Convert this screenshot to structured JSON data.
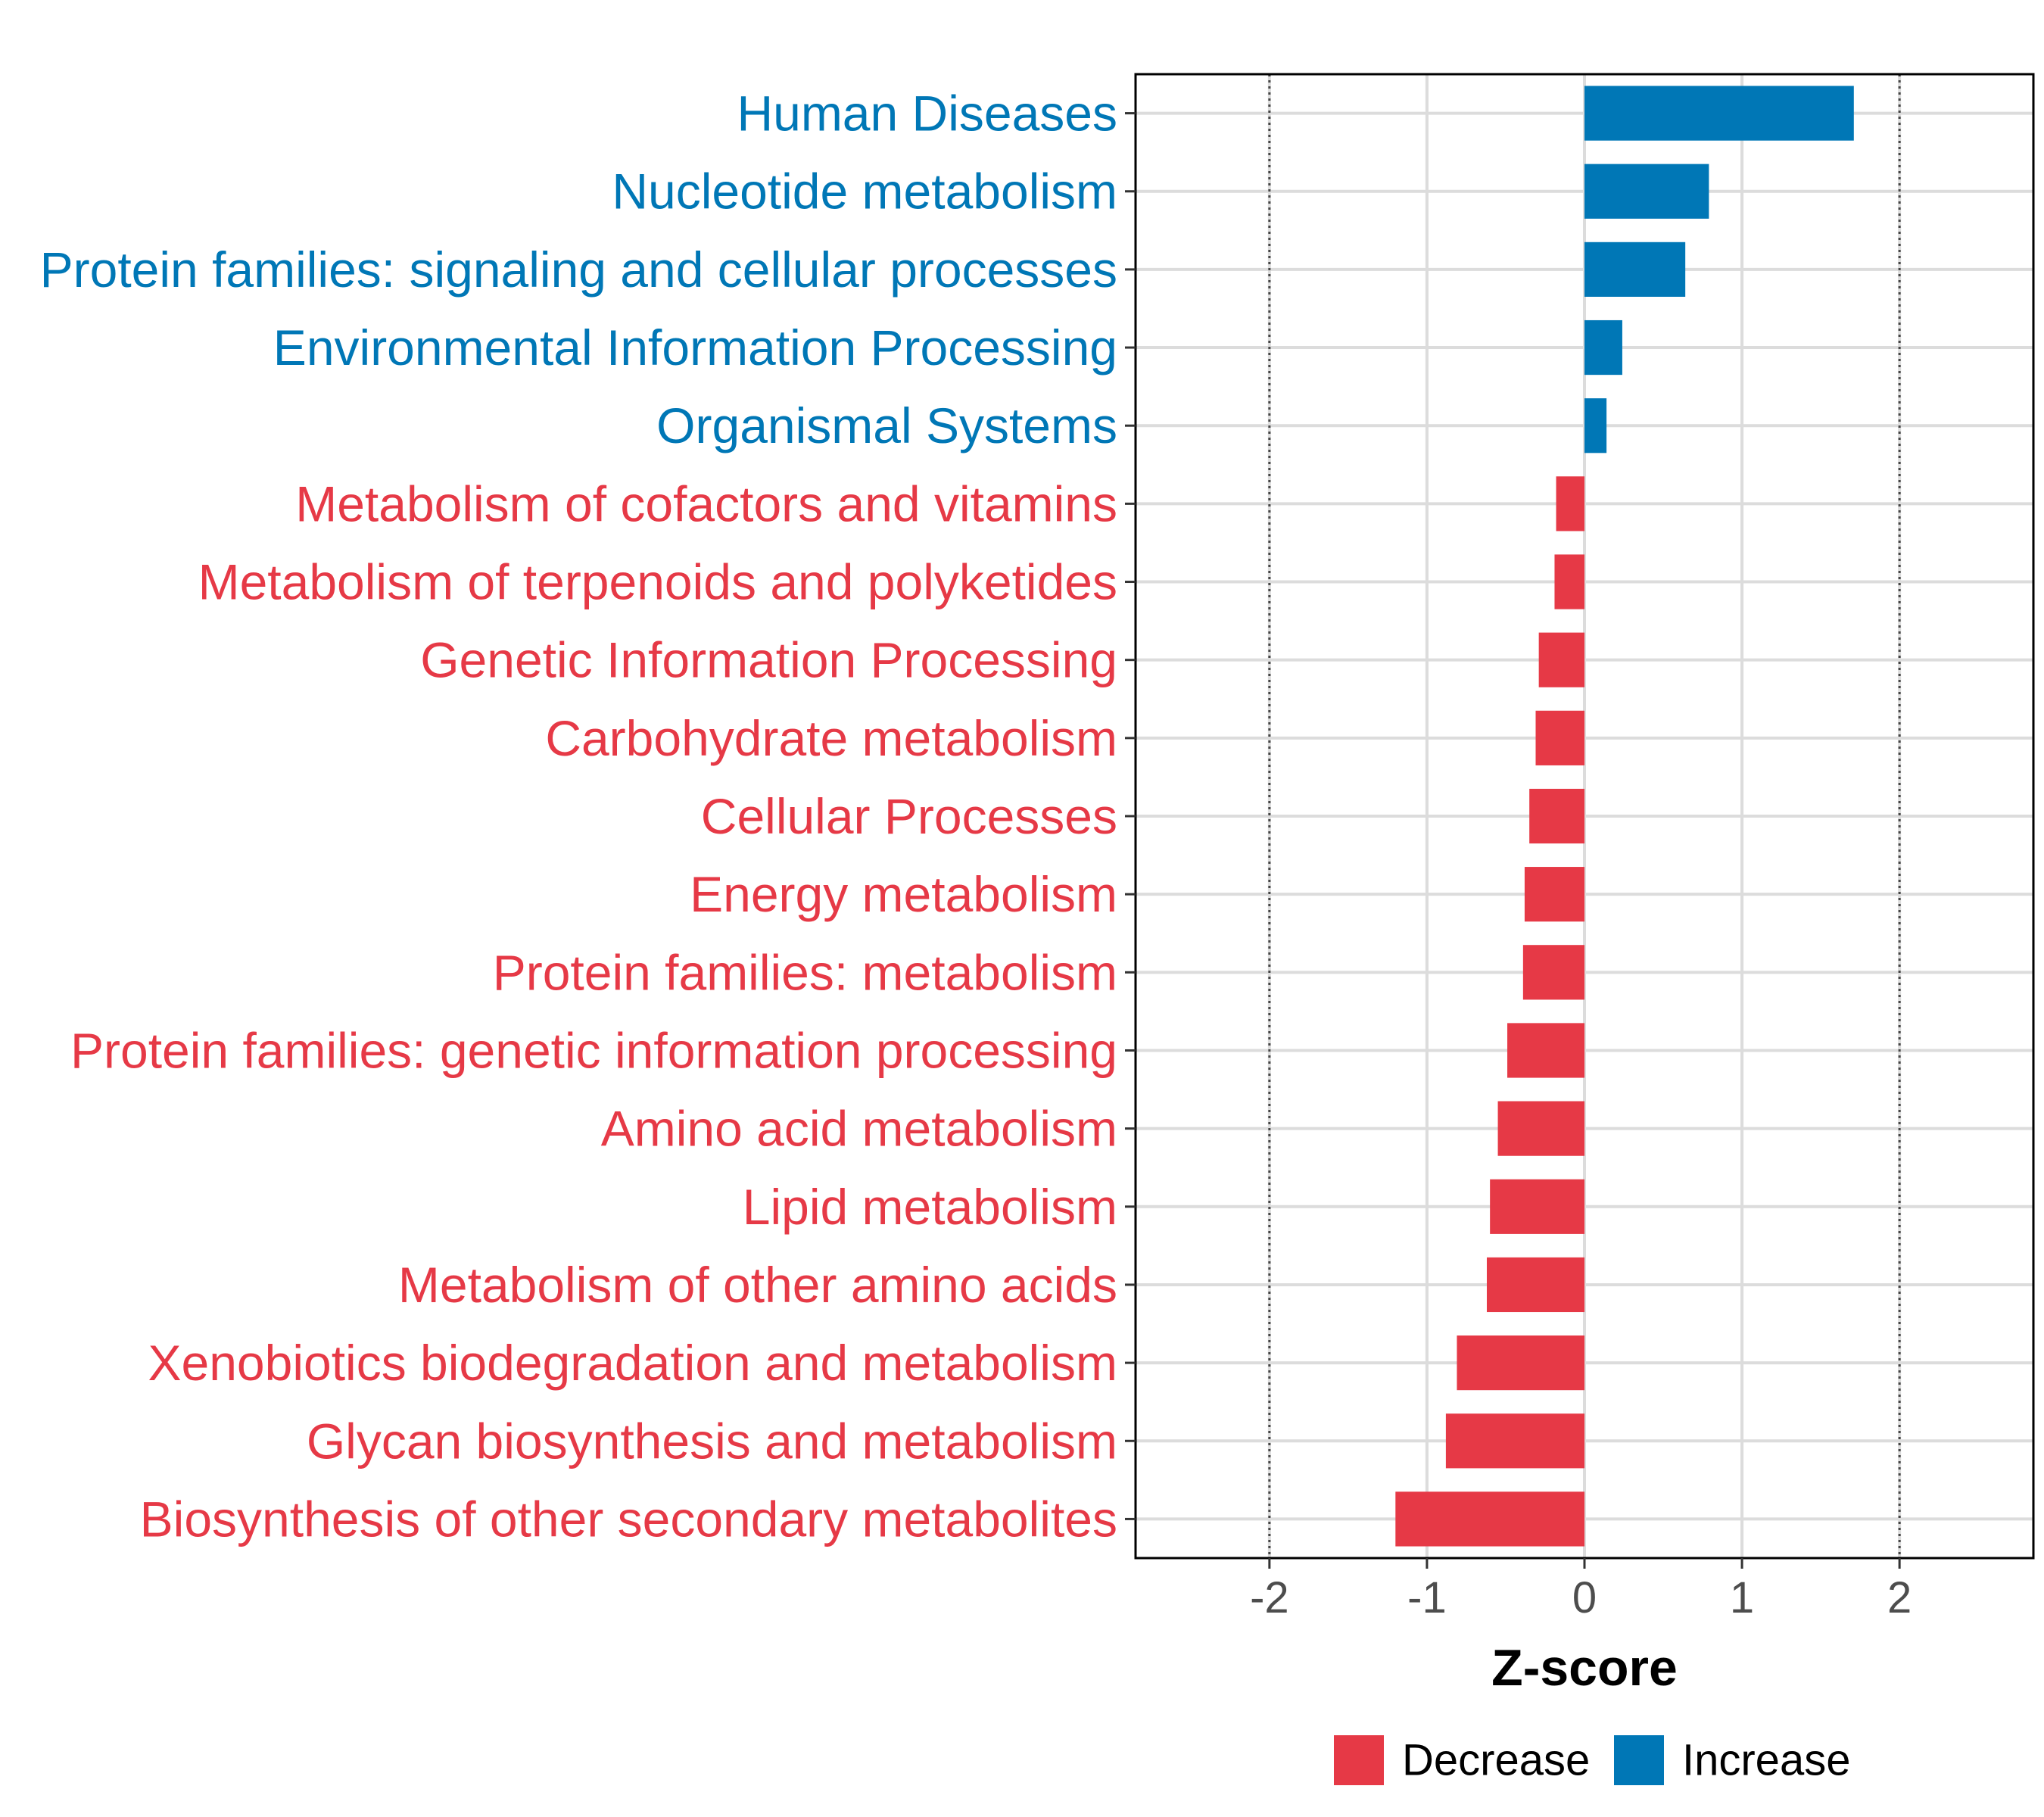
{
  "chart_data": {
    "type": "bar",
    "orientation": "horizontal",
    "xlabel": "Z-score",
    "xlim": [
      -2.85,
      2.85
    ],
    "xticks": [
      -2,
      -1,
      0,
      1,
      2
    ],
    "xtick_labels": [
      "-2",
      "-1",
      "0",
      "1",
      "2"
    ],
    "reference_lines": [
      -2,
      2
    ],
    "grid": true,
    "colors": {
      "Decrease": "#e63946",
      "Increase": "#0077b6"
    },
    "legend": {
      "position": "bottom",
      "entries": [
        "Decrease",
        "Increase"
      ]
    },
    "bars": [
      {
        "category": "Human Diseases",
        "value": 1.71,
        "group": "Increase"
      },
      {
        "category": "Nucleotide metabolism",
        "value": 0.79,
        "group": "Increase"
      },
      {
        "category": "Protein families: signaling and cellular processes",
        "value": 0.64,
        "group": "Increase"
      },
      {
        "category": "Environmental Information Processing",
        "value": 0.24,
        "group": "Increase"
      },
      {
        "category": "Organismal Systems",
        "value": 0.14,
        "group": "Increase"
      },
      {
        "category": "Metabolism of cofactors and vitamins",
        "value": -0.18,
        "group": "Decrease"
      },
      {
        "category": "Metabolism of terpenoids and polyketides",
        "value": -0.19,
        "group": "Decrease"
      },
      {
        "category": "Genetic Information Processing",
        "value": -0.29,
        "group": "Decrease"
      },
      {
        "category": "Carbohydrate metabolism",
        "value": -0.31,
        "group": "Decrease"
      },
      {
        "category": "Cellular Processes",
        "value": -0.35,
        "group": "Decrease"
      },
      {
        "category": "Energy metabolism",
        "value": -0.38,
        "group": "Decrease"
      },
      {
        "category": "Protein families: metabolism",
        "value": -0.39,
        "group": "Decrease"
      },
      {
        "category": "Protein families: genetic information processing",
        "value": -0.49,
        "group": "Decrease"
      },
      {
        "category": "Amino acid metabolism",
        "value": -0.55,
        "group": "Decrease"
      },
      {
        "category": "Lipid metabolism",
        "value": -0.6,
        "group": "Decrease"
      },
      {
        "category": "Metabolism of other amino acids",
        "value": -0.62,
        "group": "Decrease"
      },
      {
        "category": "Xenobiotics biodegradation and metabolism",
        "value": -0.81,
        "group": "Decrease"
      },
      {
        "category": "Glycan biosynthesis and metabolism",
        "value": -0.88,
        "group": "Decrease"
      },
      {
        "category": "Biosynthesis of other secondary metabolites",
        "value": -1.2,
        "group": "Decrease"
      }
    ]
  }
}
